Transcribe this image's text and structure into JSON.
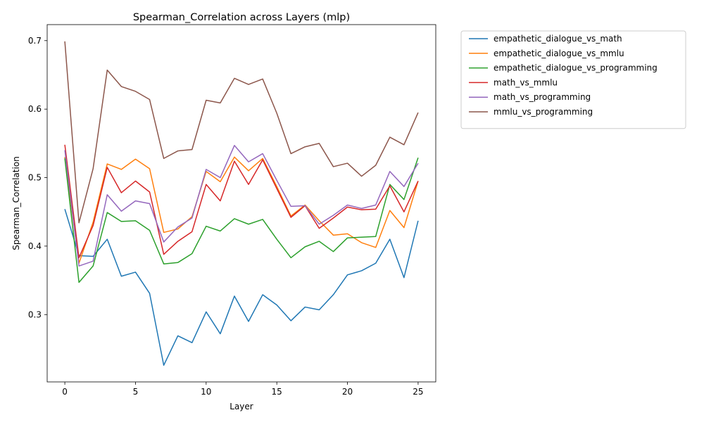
{
  "chart_data": {
    "type": "line",
    "title": "Spearman_Correlation across Layers (mlp)",
    "xlabel": "Layer",
    "ylabel": "Spearman_Correlation",
    "xlim": [
      -1.25,
      26.25
    ],
    "ylim": [
      0.2017,
      0.7234
    ],
    "xticks": [
      0,
      5,
      10,
      15,
      20,
      25
    ],
    "xtick_labels": [
      "0",
      "5",
      "10",
      "15",
      "20",
      "25"
    ],
    "yticks": [
      0.3,
      0.4,
      0.5,
      0.6,
      0.7
    ],
    "ytick_labels": [
      "0.3",
      "0.4",
      "0.5",
      "0.6",
      "0.7"
    ],
    "grid": false,
    "legend_position": "outside-right-top",
    "x": [
      0,
      1,
      2,
      3,
      4,
      5,
      6,
      7,
      8,
      9,
      10,
      11,
      12,
      13,
      14,
      15,
      16,
      17,
      18,
      19,
      20,
      21,
      22,
      23,
      24,
      25
    ],
    "series": [
      {
        "name": "empathetic_dialogue_vs_math",
        "color": "#1f77b4",
        "values": [
          0.454,
          0.386,
          0.385,
          0.41,
          0.356,
          0.362,
          0.331,
          0.226,
          0.269,
          0.259,
          0.304,
          0.272,
          0.327,
          0.29,
          0.329,
          0.314,
          0.291,
          0.311,
          0.307,
          0.329,
          0.358,
          0.364,
          0.375,
          0.41,
          0.354,
          0.437
        ]
      },
      {
        "name": "empathetic_dialogue_vs_mmlu",
        "color": "#ff7f0e",
        "values": [
          0.53,
          0.375,
          0.435,
          0.52,
          0.512,
          0.527,
          0.513,
          0.42,
          0.425,
          0.443,
          0.509,
          0.494,
          0.53,
          0.51,
          0.528,
          0.487,
          0.444,
          0.46,
          0.437,
          0.416,
          0.418,
          0.405,
          0.398,
          0.452,
          0.427,
          0.495
        ]
      },
      {
        "name": "empathetic_dialogue_vs_programming",
        "color": "#2ca02c",
        "values": [
          0.528,
          0.347,
          0.371,
          0.449,
          0.436,
          0.437,
          0.423,
          0.374,
          0.376,
          0.389,
          0.429,
          0.422,
          0.44,
          0.432,
          0.439,
          0.41,
          0.383,
          0.399,
          0.407,
          0.392,
          0.412,
          0.413,
          0.414,
          0.49,
          0.468,
          0.529
        ]
      },
      {
        "name": "math_vs_mmlu",
        "color": "#d62728",
        "values": [
          0.548,
          0.383,
          0.43,
          0.515,
          0.478,
          0.495,
          0.479,
          0.388,
          0.407,
          0.421,
          0.49,
          0.466,
          0.524,
          0.49,
          0.526,
          0.484,
          0.442,
          0.459,
          0.426,
          0.441,
          0.457,
          0.453,
          0.454,
          0.488,
          0.45,
          0.495
        ]
      },
      {
        "name": "math_vs_programming",
        "color": "#9467bd",
        "values": [
          0.54,
          0.371,
          0.378,
          0.475,
          0.451,
          0.466,
          0.462,
          0.406,
          0.428,
          0.441,
          0.512,
          0.5,
          0.547,
          0.523,
          0.535,
          0.496,
          0.458,
          0.459,
          0.432,
          0.445,
          0.46,
          0.455,
          0.46,
          0.509,
          0.487,
          0.521
        ]
      },
      {
        "name": "mmlu_vs_programming",
        "color": "#8c564b",
        "values": [
          0.699,
          0.434,
          0.513,
          0.657,
          0.633,
          0.626,
          0.614,
          0.528,
          0.539,
          0.541,
          0.613,
          0.609,
          0.645,
          0.636,
          0.644,
          0.594,
          0.535,
          0.545,
          0.55,
          0.516,
          0.521,
          0.502,
          0.518,
          0.559,
          0.548,
          0.595
        ]
      }
    ]
  }
}
